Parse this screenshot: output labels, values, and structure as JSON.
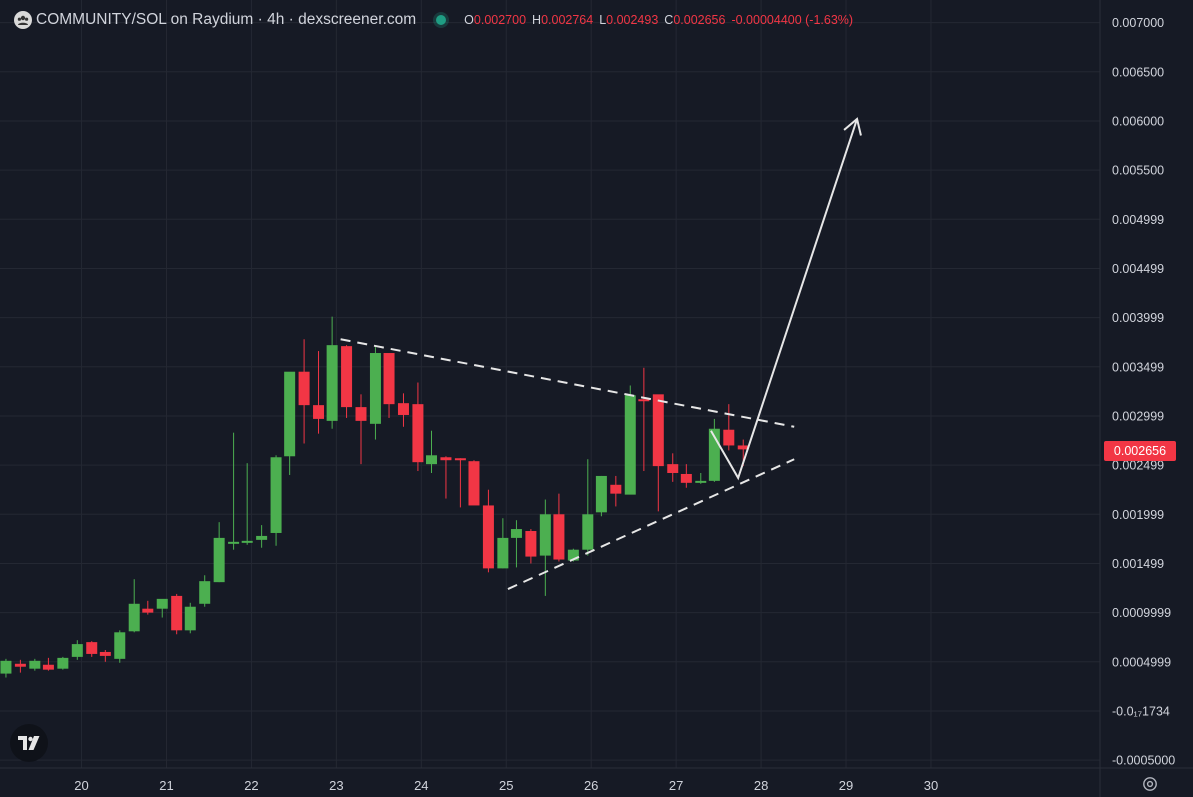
{
  "header": {
    "title": "COMMUNITY/SOL on Raydium · 4h · dexscreener.com",
    "ohlc": [
      {
        "key": "O",
        "value": "0.002700"
      },
      {
        "key": "H",
        "value": "0.002764"
      },
      {
        "key": "L",
        "value": "0.002493"
      },
      {
        "key": "C",
        "value": "0.002656"
      }
    ],
    "change": "-0.00004400 (-1.63%)"
  },
  "last_price_label": "0.002656",
  "icons": {
    "logo": "community-logo-icon",
    "status": "status-dot-icon",
    "tv": "tradingview-logo-icon",
    "settings": "gear-icon"
  },
  "colors": {
    "background": "#161a25",
    "grid": "#242833",
    "up": "#4caf50",
    "down": "#f23645",
    "text": "#d1d4dc",
    "drawing": "#e6e6e6"
  },
  "chart_data": {
    "type": "candlestick",
    "timeframe": "4h",
    "y_tick_labels": [
      "0.007000",
      "0.006500",
      "0.006000",
      "0.005500",
      "0.004999",
      "0.004499",
      "0.003999",
      "0.003499",
      "0.002999",
      "0.002499",
      "0.001999",
      "0.001499",
      "0.0009999",
      "0.0004999",
      "-0.0₁₇1734",
      "-0.0005000"
    ],
    "y_tick_values": [
      0.007,
      0.0065,
      0.006,
      0.0055,
      0.005,
      0.0045,
      0.004,
      0.0035,
      0.003,
      0.0025,
      0.002,
      0.0015,
      0.001,
      0.0005,
      0.0,
      -0.0005
    ],
    "ylim": [
      -0.00058,
      0.00723
    ],
    "x_tick_labels": [
      "20",
      "21",
      "22",
      "23",
      "24",
      "25",
      "26",
      "27",
      "28",
      "29",
      "30"
    ],
    "x_tick_values": [
      19.0,
      20.0,
      21.0,
      22.0,
      23.0,
      24.0,
      25.0,
      26.0,
      27.0,
      28.0,
      29.0
    ],
    "xlim": [
      18.04,
      30.99
    ],
    "candles": [
      {
        "x": 18.11,
        "o": 0.00038,
        "h": 0.00053,
        "l": 0.00034,
        "c": 0.00051
      },
      {
        "x": 18.28,
        "o": 0.00048,
        "h": 0.00052,
        "l": 0.00039,
        "c": 0.00045
      },
      {
        "x": 18.45,
        "o": 0.00043,
        "h": 0.00053,
        "l": 0.00041,
        "c": 0.00051
      },
      {
        "x": 18.61,
        "o": 0.00047,
        "h": 0.00054,
        "l": 0.00041,
        "c": 0.00042
      },
      {
        "x": 18.78,
        "o": 0.00043,
        "h": 0.00055,
        "l": 0.00042,
        "c": 0.00054
      },
      {
        "x": 18.95,
        "o": 0.00055,
        "h": 0.00072,
        "l": 0.00052,
        "c": 0.00068
      },
      {
        "x": 19.12,
        "o": 0.0007,
        "h": 0.00071,
        "l": 0.00055,
        "c": 0.00058
      },
      {
        "x": 19.28,
        "o": 0.0006,
        "h": 0.00062,
        "l": 0.0005,
        "c": 0.00056
      },
      {
        "x": 19.45,
        "o": 0.00053,
        "h": 0.00082,
        "l": 0.00049,
        "c": 0.0008
      },
      {
        "x": 19.62,
        "o": 0.00081,
        "h": 0.00134,
        "l": 0.0008,
        "c": 0.00109
      },
      {
        "x": 19.78,
        "o": 0.00104,
        "h": 0.00112,
        "l": 0.00098,
        "c": 0.001
      },
      {
        "x": 19.95,
        "o": 0.00104,
        "h": 0.00113,
        "l": 0.00095,
        "c": 0.00114
      },
      {
        "x": 20.12,
        "o": 0.00117,
        "h": 0.00119,
        "l": 0.00078,
        "c": 0.00082
      },
      {
        "x": 20.28,
        "o": 0.00082,
        "h": 0.0011,
        "l": 0.00079,
        "c": 0.00106
      },
      {
        "x": 20.45,
        "o": 0.00109,
        "h": 0.00138,
        "l": 0.00106,
        "c": 0.00132
      },
      {
        "x": 20.62,
        "o": 0.00131,
        "h": 0.00192,
        "l": 0.00131,
        "c": 0.00176
      },
      {
        "x": 20.79,
        "o": 0.0017,
        "h": 0.00283,
        "l": 0.00164,
        "c": 0.00172
      },
      {
        "x": 20.95,
        "o": 0.00171,
        "h": 0.00252,
        "l": 0.00169,
        "c": 0.00173
      },
      {
        "x": 21.12,
        "o": 0.00174,
        "h": 0.00189,
        "l": 0.00166,
        "c": 0.00178
      },
      {
        "x": 21.29,
        "o": 0.00181,
        "h": 0.0026,
        "l": 0.00168,
        "c": 0.00258
      },
      {
        "x": 21.45,
        "o": 0.00259,
        "h": 0.00341,
        "l": 0.0024,
        "c": 0.00345
      },
      {
        "x": 21.62,
        "o": 0.00345,
        "h": 0.00378,
        "l": 0.00272,
        "c": 0.00311
      },
      {
        "x": 21.79,
        "o": 0.00311,
        "h": 0.00366,
        "l": 0.00282,
        "c": 0.00297
      },
      {
        "x": 21.95,
        "o": 0.00295,
        "h": 0.00401,
        "l": 0.00287,
        "c": 0.00372
      },
      {
        "x": 22.12,
        "o": 0.00371,
        "h": 0.00372,
        "l": 0.00298,
        "c": 0.00309
      },
      {
        "x": 22.29,
        "o": 0.00309,
        "h": 0.00322,
        "l": 0.00251,
        "c": 0.00295
      },
      {
        "x": 22.46,
        "o": 0.00292,
        "h": 0.0037,
        "l": 0.00276,
        "c": 0.00364
      },
      {
        "x": 22.62,
        "o": 0.00364,
        "h": 0.00363,
        "l": 0.00298,
        "c": 0.00312
      },
      {
        "x": 22.79,
        "o": 0.00313,
        "h": 0.00323,
        "l": 0.00289,
        "c": 0.00301
      },
      {
        "x": 22.96,
        "o": 0.00312,
        "h": 0.00334,
        "l": 0.00244,
        "c": 0.00253
      },
      {
        "x": 23.12,
        "o": 0.00251,
        "h": 0.00285,
        "l": 0.00242,
        "c": 0.0026
      },
      {
        "x": 23.29,
        "o": 0.00258,
        "h": 0.00259,
        "l": 0.00216,
        "c": 0.00255
      },
      {
        "x": 23.46,
        "o": 0.00257,
        "h": 0.00257,
        "l": 0.00207,
        "c": 0.00256
      },
      {
        "x": 23.62,
        "o": 0.00254,
        "h": 0.00255,
        "l": 0.00214,
        "c": 0.00209
      },
      {
        "x": 23.79,
        "o": 0.00209,
        "h": 0.00225,
        "l": 0.00141,
        "c": 0.00145
      },
      {
        "x": 23.96,
        "o": 0.00145,
        "h": 0.00196,
        "l": 0.00145,
        "c": 0.00176
      },
      {
        "x": 24.12,
        "o": 0.00176,
        "h": 0.00194,
        "l": 0.00146,
        "c": 0.00185
      },
      {
        "x": 24.29,
        "o": 0.00183,
        "h": 0.00185,
        "l": 0.0015,
        "c": 0.00157
      },
      {
        "x": 24.46,
        "o": 0.00158,
        "h": 0.00215,
        "l": 0.00117,
        "c": 0.002
      },
      {
        "x": 24.62,
        "o": 0.002,
        "h": 0.00221,
        "l": 0.00152,
        "c": 0.00154
      },
      {
        "x": 24.79,
        "o": 0.00153,
        "h": 0.00165,
        "l": 0.00152,
        "c": 0.00164
      },
      {
        "x": 24.96,
        "o": 0.00164,
        "h": 0.00256,
        "l": 0.00158,
        "c": 0.002
      },
      {
        "x": 25.12,
        "o": 0.00202,
        "h": 0.00239,
        "l": 0.00198,
        "c": 0.00239
      },
      {
        "x": 25.29,
        "o": 0.0023,
        "h": 0.00239,
        "l": 0.00208,
        "c": 0.00221
      },
      {
        "x": 25.46,
        "o": 0.0022,
        "h": 0.00331,
        "l": 0.00221,
        "c": 0.00321
      },
      {
        "x": 25.62,
        "o": 0.00317,
        "h": 0.00349,
        "l": 0.00244,
        "c": 0.00316
      },
      {
        "x": 25.79,
        "o": 0.00322,
        "h": 0.00318,
        "l": 0.00203,
        "c": 0.00249
      },
      {
        "x": 25.96,
        "o": 0.00251,
        "h": 0.00262,
        "l": 0.00233,
        "c": 0.00242
      },
      {
        "x": 26.12,
        "o": 0.00241,
        "h": 0.00251,
        "l": 0.00227,
        "c": 0.00232
      },
      {
        "x": 26.29,
        "o": 0.00232,
        "h": 0.00242,
        "l": 0.00231,
        "c": 0.00234
      },
      {
        "x": 26.45,
        "o": 0.00234,
        "h": 0.00297,
        "l": 0.00233,
        "c": 0.00287
      },
      {
        "x": 26.62,
        "o": 0.00286,
        "h": 0.00312,
        "l": 0.00265,
        "c": 0.0027
      },
      {
        "x": 26.79,
        "o": 0.0027,
        "h": 0.00276,
        "l": 0.00249,
        "c": 0.00266
      }
    ],
    "drawings": [
      {
        "name": "upper-trendline",
        "style": "dashed",
        "points": [
          [
            22.05,
            0.00378
          ],
          [
            27.39,
            0.00289
          ]
        ]
      },
      {
        "name": "lower-trendline",
        "style": "dashed",
        "points": [
          [
            24.02,
            0.00124
          ],
          [
            27.39,
            0.00256
          ]
        ]
      },
      {
        "name": "projection-path",
        "style": "solid",
        "points": [
          [
            26.41,
            0.00285
          ],
          [
            26.73,
            0.00237
          ],
          [
            28.13,
            0.00602
          ]
        ]
      }
    ]
  }
}
